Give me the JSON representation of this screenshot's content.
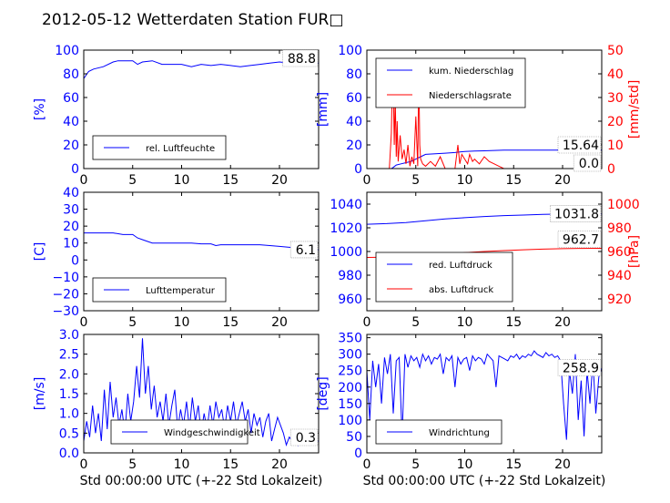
{
  "title": "2012-05-12 Wetterdaten Station FUR□",
  "colors": {
    "left": "#0000ff",
    "right": "#ff0000",
    "light": "#8888ff"
  },
  "chart_data": [
    {
      "type": "line",
      "id": "p1",
      "xlim": [
        0,
        24
      ],
      "ylim": [
        0,
        100
      ],
      "xticks": [
        "0",
        "5",
        "10",
        "15",
        "20"
      ],
      "yticks": [
        "0",
        "20",
        "40",
        "60",
        "80",
        "100"
      ],
      "ylabel": "[%]",
      "xlabel": "",
      "series": [
        {
          "name": "rel. Luftfeuchte",
          "color": "#0000ff",
          "x": [
            0,
            0.5,
            1,
            2,
            3,
            3.5,
            4,
            5,
            5.5,
            6,
            7,
            8,
            9,
            10,
            11,
            12,
            13,
            14,
            15,
            16,
            17,
            18,
            19,
            20,
            21,
            22,
            23,
            24
          ],
          "y": [
            76,
            82,
            84,
            86,
            90,
            91,
            91,
            91,
            88,
            90,
            91,
            88,
            88,
            88,
            86,
            88,
            87,
            88,
            87,
            86,
            87,
            88,
            89,
            90,
            89,
            89,
            89,
            89
          ]
        }
      ],
      "value_label": "88.8",
      "value_label_at": [
        24,
        88.8
      ],
      "legend": "bottom-left"
    },
    {
      "type": "line",
      "id": "p2",
      "xlim": [
        0,
        24
      ],
      "ylim": [
        0,
        100
      ],
      "ylim2": [
        0,
        50
      ],
      "xticks": [
        "0",
        "5",
        "10",
        "15",
        "20"
      ],
      "yticks": [
        "0",
        "20",
        "40",
        "60",
        "80",
        "100"
      ],
      "yticks2": [
        "0",
        "10",
        "20",
        "30",
        "40",
        "50"
      ],
      "ylabel": "[mm]",
      "ylabel2": "[mm/std]",
      "xlabel": "",
      "series": [
        {
          "name": "kum. Niederschlag",
          "color": "#0000ff",
          "axis": "left",
          "x": [
            0,
            2.5,
            2.7,
            3,
            3.5,
            4,
            4.5,
            5,
            5.5,
            6,
            8,
            9,
            9.5,
            10,
            11,
            12,
            13,
            14,
            16,
            18,
            20,
            21,
            22,
            24
          ],
          "y": [
            0,
            0,
            1,
            3,
            4,
            5,
            6,
            8,
            10,
            12,
            13,
            13.5,
            14,
            14.5,
            14.8,
            15,
            15.3,
            15.5,
            15.6,
            15.64,
            15.64,
            15.64,
            15.64,
            15.64
          ]
        },
        {
          "name": "Niederschlagsrate",
          "color": "#ff0000",
          "axis": "right",
          "x": [
            0,
            2.3,
            2.5,
            2.6,
            2.7,
            2.8,
            2.9,
            3.0,
            3.1,
            3.2,
            3.4,
            3.6,
            3.8,
            4.0,
            4.2,
            4.4,
            4.6,
            4.8,
            5.0,
            5.2,
            5.3,
            5.4,
            5.5,
            5.7,
            6.0,
            6.5,
            7.0,
            7.5,
            8.0,
            9.0,
            9.3,
            9.5,
            9.7,
            10.0,
            10.3,
            10.5,
            10.8,
            11.0,
            11.5,
            12.0,
            12.5,
            13.0,
            13.5,
            14.0,
            24
          ],
          "y": [
            0,
            0,
            15,
            34,
            36,
            10,
            30,
            5,
            20,
            3,
            14,
            4,
            8,
            2,
            10,
            1,
            5,
            2,
            22,
            1,
            43,
            10,
            4,
            2,
            1,
            3,
            1,
            5,
            0,
            0,
            10,
            2,
            6,
            4,
            2,
            6,
            3,
            4,
            2,
            5,
            3,
            2,
            1,
            0,
            0
          ]
        }
      ],
      "value_label": "15.64",
      "value_label_at": [
        24,
        15.64
      ],
      "value_label2": "0.0",
      "value_label2_at": [
        24,
        0
      ],
      "legend": "top-left"
    },
    {
      "type": "line",
      "id": "p3",
      "xlim": [
        0,
        24
      ],
      "ylim": [
        -30,
        40
      ],
      "xticks": [
        "0",
        "5",
        "10",
        "15",
        "20"
      ],
      "yticks": [
        "−30",
        "−20",
        "−10",
        "0",
        "10",
        "20",
        "30",
        "40"
      ],
      "ylabel": "[C]",
      "xlabel": "",
      "series": [
        {
          "name": "Lufttemperatur",
          "color": "#0000ff",
          "x": [
            0,
            1,
            2,
            3,
            4,
            5,
            5.5,
            6,
            6.5,
            7,
            8,
            9,
            10,
            11,
            12,
            13,
            13.5,
            14,
            15,
            16,
            17,
            18,
            19,
            20,
            21,
            22,
            23,
            24
          ],
          "y": [
            16,
            16,
            16,
            16,
            15,
            15,
            13,
            12,
            11,
            10,
            10,
            10,
            10,
            10,
            9.5,
            9.5,
            8.5,
            9,
            9,
            9,
            9,
            9,
            8.5,
            8,
            7.5,
            7,
            6.5,
            6.1
          ]
        }
      ],
      "value_label": "6.1",
      "value_label_at": [
        24,
        6.1
      ],
      "legend": "bottom-left"
    },
    {
      "type": "line",
      "id": "p4",
      "xlim": [
        0,
        24
      ],
      "ylim": [
        950,
        1050
      ],
      "ylim2": [
        910,
        1010
      ],
      "xticks": [
        "0",
        "5",
        "10",
        "15",
        "20"
      ],
      "yticks": [
        "960",
        "980",
        "1000",
        "1020",
        "1040"
      ],
      "yticks2": [
        "920",
        "940",
        "960",
        "980",
        "1000"
      ],
      "ylabel": "",
      "ylabel2": "[hPa]",
      "xlabel": "",
      "series": [
        {
          "name": "red. Luftdruck",
          "color": "#0000ff",
          "axis": "left",
          "x": [
            0,
            2,
            4,
            6,
            8,
            10,
            12,
            14,
            16,
            18,
            20,
            22,
            24
          ],
          "y": [
            1023,
            1023.5,
            1024.5,
            1026,
            1027.5,
            1028.5,
            1029.5,
            1030.3,
            1030.8,
            1031.3,
            1031.6,
            1031.8,
            1031.8
          ]
        },
        {
          "name": "abs. Luftdruck",
          "color": "#ff0000",
          "axis": "right",
          "x": [
            0,
            2,
            4,
            6,
            8,
            10,
            12,
            14,
            16,
            18,
            20,
            22,
            24
          ],
          "y": [
            955,
            955.2,
            955.6,
            957,
            958,
            959,
            960,
            960.8,
            961.5,
            962,
            962.4,
            962.6,
            962.7
          ]
        }
      ],
      "value_label": "1031.8",
      "value_label_at": [
        24,
        1031.8
      ],
      "value_label2": "962.7",
      "value_label2_at": [
        24,
        962.7
      ],
      "legend": "bottom-left"
    },
    {
      "type": "line",
      "id": "p5",
      "xlim": [
        0,
        24
      ],
      "ylim": [
        0,
        3
      ],
      "xticks": [
        "0",
        "5",
        "10",
        "15",
        "20"
      ],
      "yticks": [
        "0.0",
        "0.5",
        "1.0",
        "1.5",
        "2.0",
        "2.5",
        "3.0"
      ],
      "ylabel": "[m/s]",
      "xlabel": "Std 00:00:00 UTC (+-22 Std Lokalzeit)",
      "series": [
        {
          "name": "Windgeschwindigkeit",
          "color": "#0000ff",
          "x": [
            0,
            0.3,
            0.6,
            0.9,
            1.2,
            1.5,
            1.8,
            2.1,
            2.4,
            2.7,
            3.0,
            3.3,
            3.6,
            3.9,
            4.2,
            4.5,
            4.8,
            5.1,
            5.4,
            5.7,
            6.0,
            6.3,
            6.6,
            6.9,
            7.2,
            7.5,
            7.8,
            8.1,
            8.4,
            8.7,
            9.0,
            9.3,
            9.6,
            9.9,
            10.2,
            10.5,
            10.8,
            11.1,
            11.4,
            11.7,
            12.0,
            12.3,
            12.6,
            12.9,
            13.2,
            13.5,
            13.8,
            14.1,
            14.4,
            14.7,
            15.0,
            15.3,
            15.6,
            15.9,
            16.2,
            16.5,
            16.8,
            17.1,
            17.4,
            17.7,
            18.0,
            18.3,
            18.6,
            18.9,
            19.2,
            19.5,
            19.8,
            20.1,
            20.4,
            20.7,
            21.0,
            21.3,
            21.6,
            21.9,
            22.2,
            22.5,
            22.8,
            23.1,
            23.4,
            23.7,
            24.0
          ],
          "y": [
            0.3,
            0.8,
            0.4,
            1.2,
            0.5,
            1.0,
            0.3,
            1.6,
            0.6,
            1.8,
            0.9,
            1.4,
            0.7,
            1.1,
            0.5,
            1.5,
            0.8,
            1.3,
            2.2,
            1.4,
            2.9,
            1.5,
            2.2,
            1.1,
            1.7,
            0.9,
            1.3,
            0.8,
            1.5,
            0.7,
            1.2,
            1.6,
            0.6,
            1.1,
            0.7,
            1.3,
            0.6,
            1.4,
            0.8,
            1.2,
            0.5,
            1.0,
            0.6,
            1.2,
            0.7,
            1.3,
            0.9,
            1.1,
            0.6,
            1.2,
            0.8,
            1.3,
            0.7,
            1.0,
            1.3,
            0.8,
            1.1,
            0.5,
            1.0,
            0.7,
            0.9,
            0.4,
            0.8,
            1.0,
            0.3,
            0.6,
            0.9,
            0.7,
            0.5,
            0.2,
            0.4,
            0.3,
            0.5,
            0.2,
            0.4,
            0.3,
            0.4,
            0.2,
            0.3,
            0.3,
            0.3
          ]
        }
      ],
      "value_label": "0.3",
      "value_label_at": [
        24,
        0.3
      ],
      "legend": "bottom-left"
    },
    {
      "type": "line",
      "id": "p6",
      "xlim": [
        0,
        24
      ],
      "ylim": [
        0,
        360
      ],
      "xticks": [
        "0",
        "5",
        "10",
        "15",
        "20"
      ],
      "yticks": [
        "0",
        "50",
        "100",
        "150",
        "200",
        "250",
        "300",
        "350"
      ],
      "ylabel": "[deg]",
      "xlabel": "Std 00:00:00 UTC (+-22 Std Lokalzeit)",
      "series": [
        {
          "name": "Windrichtung",
          "color": "#0000ff",
          "x": [
            0,
            0.3,
            0.6,
            0.9,
            1.2,
            1.5,
            1.8,
            2.1,
            2.4,
            2.7,
            3.0,
            3.3,
            3.6,
            3.9,
            4.2,
            4.5,
            4.8,
            5.1,
            5.4,
            5.7,
            6.0,
            6.3,
            6.6,
            6.9,
            7.2,
            7.5,
            7.8,
            8.1,
            8.4,
            8.7,
            9.0,
            9.3,
            9.6,
            9.9,
            10.2,
            10.5,
            10.8,
            11.1,
            11.4,
            11.7,
            12.0,
            12.3,
            12.6,
            12.9,
            13.2,
            13.5,
            13.8,
            14.1,
            14.4,
            14.7,
            15.0,
            15.3,
            15.6,
            15.9,
            16.2,
            16.5,
            16.8,
            17.1,
            17.4,
            17.7,
            18.0,
            18.3,
            18.6,
            18.9,
            19.2,
            19.5,
            19.8,
            20.1,
            20.4,
            20.7,
            21.0,
            21.3,
            21.6,
            21.9,
            22.2,
            22.5,
            22.8,
            23.1,
            23.4,
            23.7,
            24.0
          ],
          "y": [
            250,
            100,
            280,
            200,
            270,
            150,
            290,
            240,
            300,
            120,
            280,
            290,
            50,
            300,
            260,
            295,
            280,
            290,
            260,
            300,
            280,
            295,
            270,
            290,
            285,
            300,
            240,
            290,
            280,
            295,
            200,
            290,
            270,
            285,
            290,
            250,
            295,
            280,
            290,
            285,
            270,
            300,
            290,
            280,
            200,
            295,
            290,
            285,
            280,
            295,
            290,
            300,
            285,
            295,
            290,
            300,
            295,
            310,
            300,
            295,
            290,
            305,
            295,
            300,
            290,
            295,
            280,
            150,
            40,
            250,
            180,
            300,
            100,
            220,
            50,
            250,
            150,
            280,
            120,
            230,
            259
          ]
        }
      ],
      "value_label": "258.9",
      "value_label_at": [
        24,
        258.9
      ],
      "legend": "bottom-left"
    }
  ]
}
